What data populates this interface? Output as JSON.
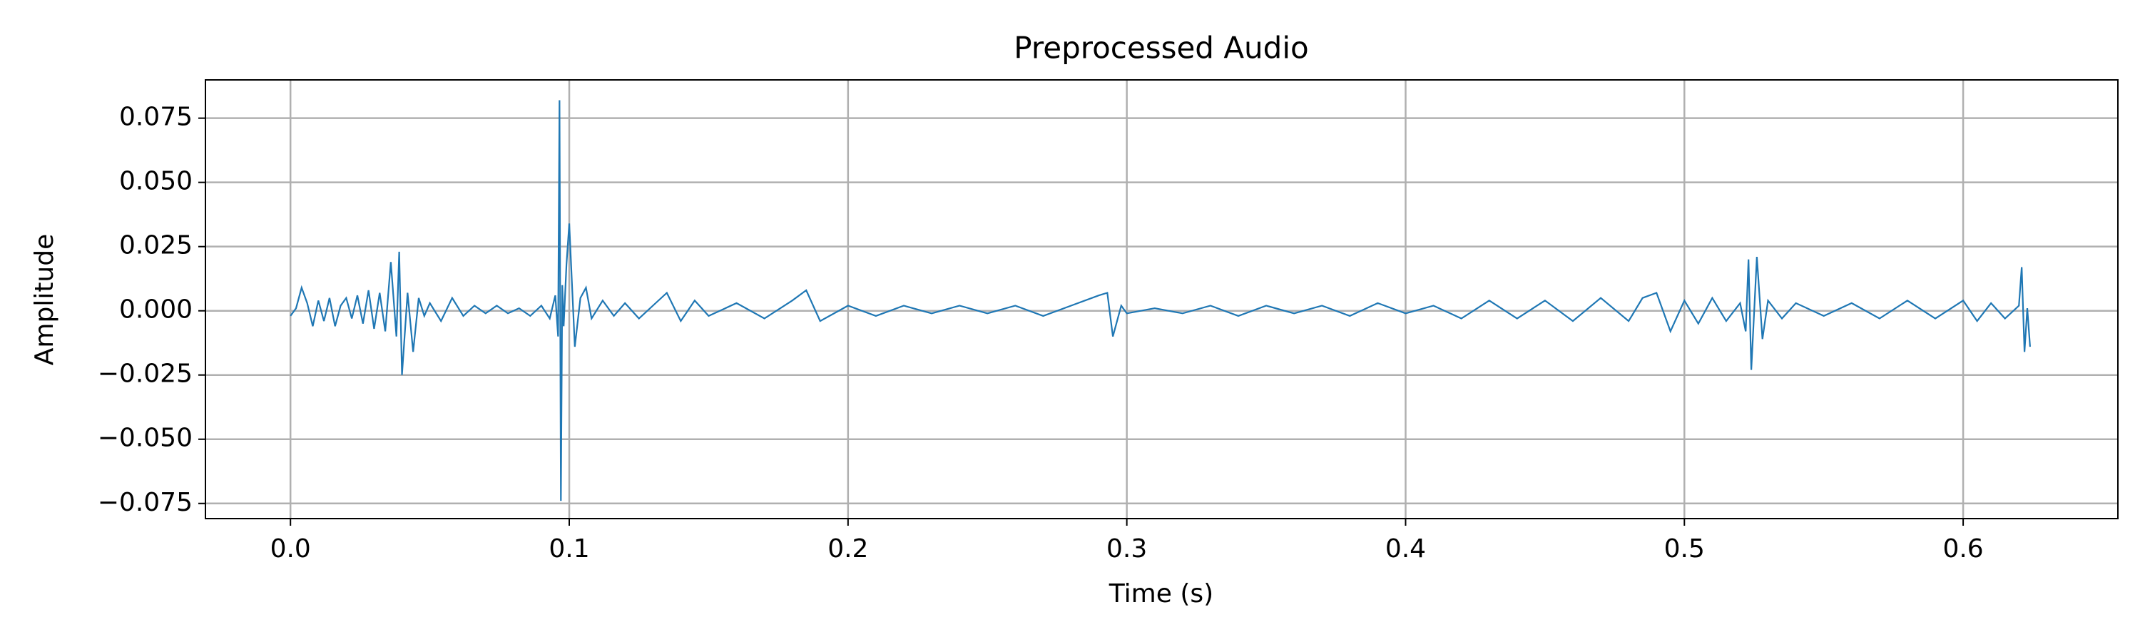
{
  "chart_data": {
    "type": "line",
    "title": "Preprocessed Audio",
    "x_label": "Time (s)",
    "y_label": "Amplitude",
    "x": [
      0,
      0.002,
      0.004,
      0.006,
      0.008,
      0.01,
      0.012,
      0.014,
      0.016,
      0.018,
      0.02,
      0.022,
      0.024,
      0.026,
      0.028,
      0.03,
      0.032,
      0.034,
      0.036,
      0.038,
      0.039,
      0.04,
      0.042,
      0.044,
      0.046,
      0.048,
      0.05,
      0.054,
      0.058,
      0.062,
      0.066,
      0.07,
      0.074,
      0.078,
      0.082,
      0.086,
      0.09,
      0.093,
      0.095,
      0.096,
      0.0965,
      0.097,
      0.0975,
      0.098,
      0.099,
      0.1,
      0.101,
      0.102,
      0.104,
      0.106,
      0.108,
      0.112,
      0.116,
      0.12,
      0.125,
      0.13,
      0.135,
      0.14,
      0.145,
      0.15,
      0.16,
      0.17,
      0.18,
      0.185,
      0.19,
      0.2,
      0.21,
      0.22,
      0.23,
      0.24,
      0.25,
      0.26,
      0.27,
      0.28,
      0.29,
      0.293,
      0.295,
      0.298,
      0.3,
      0.31,
      0.32,
      0.33,
      0.34,
      0.35,
      0.36,
      0.37,
      0.38,
      0.39,
      0.4,
      0.41,
      0.42,
      0.43,
      0.44,
      0.45,
      0.46,
      0.47,
      0.48,
      0.485,
      0.49,
      0.495,
      0.5,
      0.505,
      0.51,
      0.515,
      0.52,
      0.522,
      0.523,
      0.524,
      0.526,
      0.527,
      0.528,
      0.53,
      0.535,
      0.54,
      0.55,
      0.56,
      0.57,
      0.58,
      0.59,
      0.6,
      0.605,
      0.61,
      0.615,
      0.62,
      0.621,
      0.622,
      0.623,
      0.624
    ],
    "series": [
      {
        "color": "#1f77b4",
        "values": [
          -0.002,
          0.001,
          0.009,
          0.003,
          -0.006,
          0.004,
          -0.004,
          0.005,
          -0.006,
          0.002,
          0.005,
          -0.003,
          0.006,
          -0.005,
          0.008,
          -0.007,
          0.007,
          -0.008,
          0.019,
          -0.01,
          0.023,
          -0.025,
          0.007,
          -0.016,
          0.005,
          -0.002,
          0.003,
          -0.004,
          0.005,
          -0.002,
          0.002,
          -0.001,
          0.002,
          -0.001,
          0.001,
          -0.002,
          0.002,
          -0.003,
          0.006,
          -0.01,
          0.082,
          -0.074,
          0.01,
          -0.006,
          0.018,
          0.034,
          0.01,
          -0.014,
          0.005,
          0.009,
          -0.003,
          0.004,
          -0.002,
          0.003,
          -0.003,
          0.002,
          0.007,
          -0.004,
          0.004,
          -0.002,
          0.003,
          -0.003,
          0.004,
          0.008,
          -0.004,
          0.002,
          -0.002,
          0.002,
          -0.001,
          0.002,
          -0.001,
          0.002,
          -0.002,
          0.002,
          0.006,
          0.007,
          -0.01,
          0.002,
          -0.001,
          0.001,
          -0.001,
          0.002,
          -0.002,
          0.002,
          -0.001,
          0.002,
          -0.002,
          0.003,
          -0.001,
          0.002,
          -0.003,
          0.004,
          -0.003,
          0.004,
          -0.004,
          0.005,
          -0.004,
          0.005,
          0.007,
          -0.008,
          0.004,
          -0.005,
          0.005,
          -0.004,
          0.003,
          -0.008,
          0.02,
          -0.023,
          0.021,
          0.005,
          -0.011,
          0.004,
          -0.003,
          0.003,
          -0.002,
          0.003,
          -0.003,
          0.004,
          -0.003,
          0.004,
          -0.004,
          0.003,
          -0.003,
          0.002,
          0.017,
          -0.016,
          0.001,
          -0.014
        ]
      }
    ],
    "xlim": [
      -0.0305,
      0.6555
    ],
    "ylim": [
      -0.0809,
      0.0899
    ],
    "xticks": [
      {
        "value": 0,
        "label": "0.0"
      },
      0.1,
      0.2,
      0.3,
      0.4,
      0.5,
      0.6
    ],
    "yticks": [
      {
        "value": -0.075,
        "label": "−0.075"
      },
      {
        "value": -0.05,
        "label": "−0.050"
      },
      {
        "value": -0.025,
        "label": "−0.025"
      },
      {
        "value": 0,
        "label": "0.000"
      },
      0.025,
      {
        "value": 0.05,
        "label": "0.050"
      },
      0.075
    ],
    "grid": true
  }
}
